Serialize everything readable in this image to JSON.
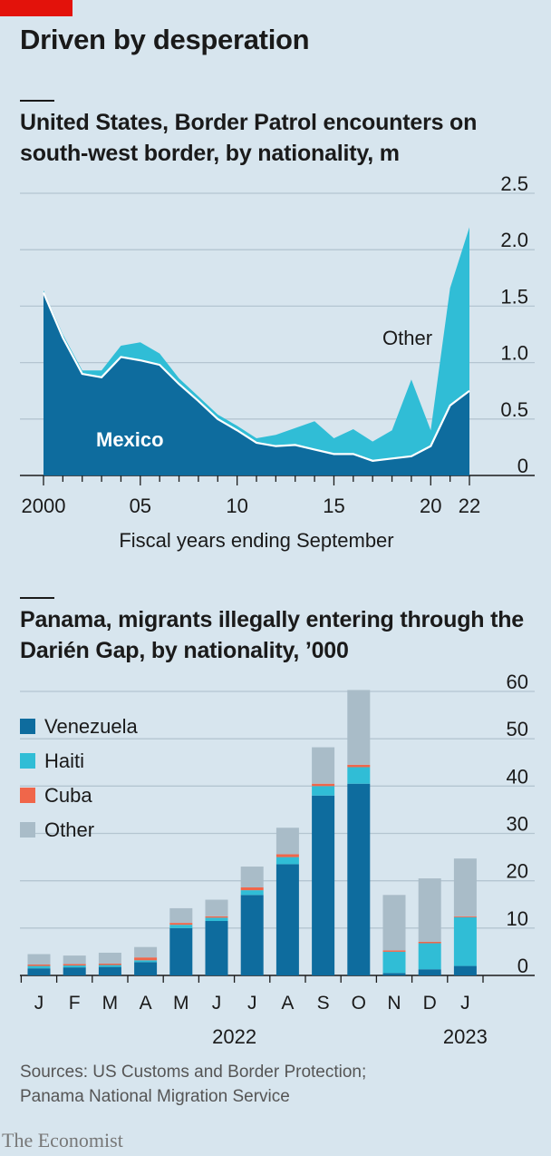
{
  "header": {
    "title": "Driven by desperation"
  },
  "chart_data": [
    {
      "type": "area",
      "title": "United States, Border Patrol encounters on south-west border, by nationality, m",
      "xlabel": "Fiscal years ending September",
      "ylabel": "",
      "x": [
        2000,
        2001,
        2002,
        2003,
        2004,
        2005,
        2006,
        2007,
        2008,
        2009,
        2010,
        2011,
        2012,
        2013,
        2014,
        2015,
        2016,
        2017,
        2018,
        2019,
        2020,
        2021,
        2022
      ],
      "xticks": [
        2000,
        2005,
        2010,
        2015,
        2020,
        2022
      ],
      "xtick_labels": [
        "2000",
        "05",
        "10",
        "15",
        "20",
        "22"
      ],
      "ylim": [
        0,
        2.5
      ],
      "yticks": [
        0,
        0.5,
        1.0,
        1.5,
        2.0,
        2.5
      ],
      "ytick_labels": [
        "0",
        "0.5",
        "1.0",
        "1.5",
        "2.0",
        "2.5"
      ],
      "stacked": true,
      "series": [
        {
          "name": "Mexico",
          "color": "#0e6c9e",
          "values": [
            1.62,
            1.22,
            0.9,
            0.87,
            1.05,
            1.02,
            0.98,
            0.81,
            0.66,
            0.5,
            0.4,
            0.29,
            0.26,
            0.27,
            0.23,
            0.19,
            0.19,
            0.13,
            0.15,
            0.17,
            0.26,
            0.62,
            0.75
          ]
        },
        {
          "name": "Other",
          "color": "#30bdd6",
          "values": [
            0.02,
            0.03,
            0.03,
            0.06,
            0.1,
            0.16,
            0.1,
            0.05,
            0.04,
            0.04,
            0.04,
            0.04,
            0.1,
            0.15,
            0.25,
            0.14,
            0.22,
            0.17,
            0.25,
            0.68,
            0.14,
            1.04,
            1.45
          ]
        }
      ],
      "annotations": [
        "Mexico",
        "Other"
      ]
    },
    {
      "type": "bar",
      "stacked": true,
      "title": "Panama, migrants illegally entering through the Darién Gap, by nationality, ’000",
      "categories": [
        "J",
        "F",
        "M",
        "A",
        "M",
        "J",
        "J",
        "A",
        "S",
        "O",
        "N",
        "D",
        "J"
      ],
      "year_labels": [
        "2022",
        "2023"
      ],
      "ylim": [
        0,
        60
      ],
      "yticks": [
        0,
        10,
        20,
        30,
        40,
        50,
        60
      ],
      "ytick_labels": [
        "0",
        "10",
        "20",
        "30",
        "40",
        "50",
        "60"
      ],
      "legend_position": "top-left",
      "series": [
        {
          "name": "Venezuela",
          "color": "#0e6c9e",
          "values": [
            1.5,
            1.7,
            1.8,
            2.8,
            10.0,
            11.5,
            17.0,
            23.5,
            38.0,
            40.5,
            0.5,
            1.3,
            2.0
          ]
        },
        {
          "name": "Haiti",
          "color": "#30bdd6",
          "values": [
            0.5,
            0.4,
            0.4,
            0.4,
            0.7,
            0.7,
            1.0,
            1.5,
            2.0,
            3.5,
            4.5,
            5.5,
            10.3
          ]
        },
        {
          "name": "Cuba",
          "color": "#f0664a",
          "values": [
            0.3,
            0.3,
            0.3,
            0.6,
            0.4,
            0.3,
            0.6,
            0.6,
            0.5,
            0.5,
            0.3,
            0.3,
            0.2
          ]
        },
        {
          "name": "Other",
          "color": "#a9bcc8",
          "values": [
            2.2,
            1.8,
            2.3,
            2.2,
            3.1,
            3.5,
            4.4,
            5.6,
            7.7,
            15.8,
            11.7,
            13.4,
            12.2
          ]
        }
      ]
    }
  ],
  "footer": {
    "sources_line1": "Sources: US Customs and Border Protection;",
    "sources_line2": "Panama National Migration Service",
    "brand": "The Economist"
  }
}
